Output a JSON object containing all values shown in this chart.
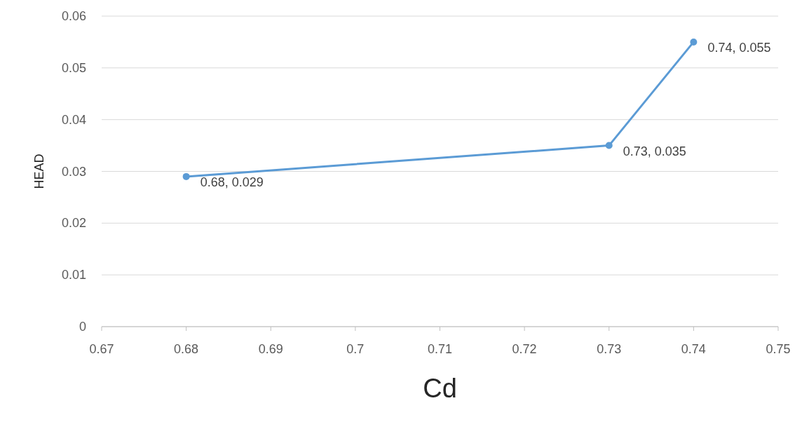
{
  "chart_data": {
    "type": "line",
    "xlabel": "Cd",
    "ylabel": "HEAD",
    "x": [
      0.68,
      0.73,
      0.74
    ],
    "series": [
      {
        "color": "#5b9bd5",
        "values": [
          0.029,
          0.035,
          0.055
        ],
        "value_labels": [
          "0.68, 0.029",
          "0.73, 0.035",
          "0.74, 0.055"
        ]
      }
    ],
    "xlim": [
      0.67,
      0.75
    ],
    "xticks": [
      0.67,
      0.68,
      0.69,
      0.7,
      0.71,
      0.72,
      0.73,
      0.74,
      0.75
    ],
    "ylim": [
      0,
      0.06
    ],
    "yticks": [
      0,
      0.01,
      0.02,
      0.03,
      0.04,
      0.05,
      0.06
    ],
    "grid": "y",
    "marker": "circle",
    "line_style": "solid"
  }
}
